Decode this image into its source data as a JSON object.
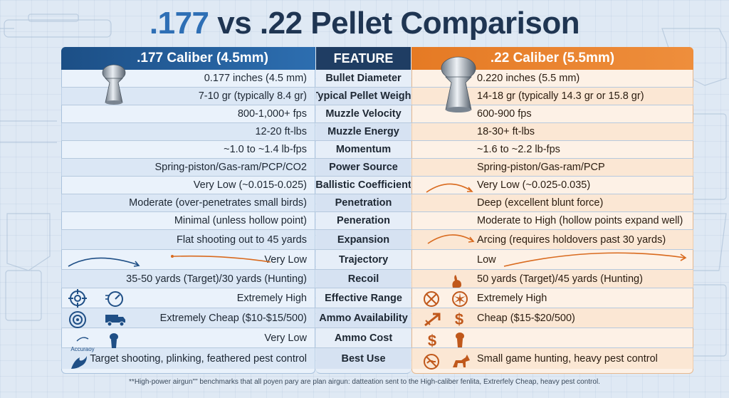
{
  "title": {
    "accent": ".177",
    "rest": "vs .22 Pellet Comparison"
  },
  "headers": {
    "left": ".177 Caliber (4.5mm)",
    "mid": "FEATURE",
    "right": ".22 Caliber (5.5mm)"
  },
  "colors": {
    "blue": "#2d6eb0",
    "orange": "#ee8e3c",
    "navy": "#1f3d63"
  },
  "rows": [
    {
      "left": "0.177 inches (4.5 mm)",
      "feature": "Bullet Diameter",
      "right": "0.220 inches (5.5 mm)"
    },
    {
      "left": "7-10 gr (typically 8.4 gr)",
      "feature": "Typical Pellet Weight",
      "right": "14-18 gr (typically 14.3 gr or 15.8 gr)"
    },
    {
      "left": "800-1,000+ fps",
      "feature": "Muzzle Velocity",
      "right": "600-900 fps"
    },
    {
      "left": "12-20 ft-lbs",
      "feature": "Muzzle Energy",
      "right": "18-30+ ft-lbs"
    },
    {
      "left": "~1.0 to ~1.4 lb-fps",
      "feature": "Momentum",
      "right": "~1.6 to ~2.2 lb-fps"
    },
    {
      "left": "Spring-piston/Gas-ram/PCP/CO2",
      "feature": "Power Source",
      "right": "Spring-piston/Gas-ram/PCP"
    },
    {
      "left": "Very Low (~0.015-0.025)",
      "feature": "Ballistic Coefficient",
      "right": "Very Low (~0.025-0.035)"
    },
    {
      "left": "Moderate (over-penetrates small birds)",
      "feature": "Penetration",
      "right": "Deep (excellent blunt force)"
    },
    {
      "left": "Minimal (unless hollow point)",
      "feature": "Peneration",
      "right": "Moderate to High (hollow points expand well)"
    },
    {
      "left": "Flat shooting out to 45 yards",
      "feature": "Expansion",
      "right": "Arcing (requires holdovers past 30 yards)"
    },
    {
      "left": "Very Low",
      "feature": "Trajectory",
      "right": "Low"
    },
    {
      "left": "35-50 yards (Target)/30 yards (Hunting)",
      "feature": "Recoil",
      "right": "50 yards (Target)/45 yards (Hunting)"
    },
    {
      "left": "Extremely High",
      "feature": "Effective Range",
      "right": "Extremely High"
    },
    {
      "left": "Extremely Cheap ($10-$15/500)",
      "feature": "Ammo Availability",
      "right": "Cheap ($15-$20/500)"
    },
    {
      "left": "Very Low",
      "feature": "Ammo Cost",
      "right": ""
    },
    {
      "left": "Target shooting, plinking, feathered pest control",
      "feature": "Best Use",
      "right": "Small game hunting, heavy pest control"
    }
  ],
  "icons": {
    "accuracy_label": "Accuraoy"
  },
  "footnote": "**High-power airgun\"\" benchmarks that all poyen pary are plan airgun: datteation sent to the High-caliber fenlita, Extrerfely Cheap, heavy pest control."
}
